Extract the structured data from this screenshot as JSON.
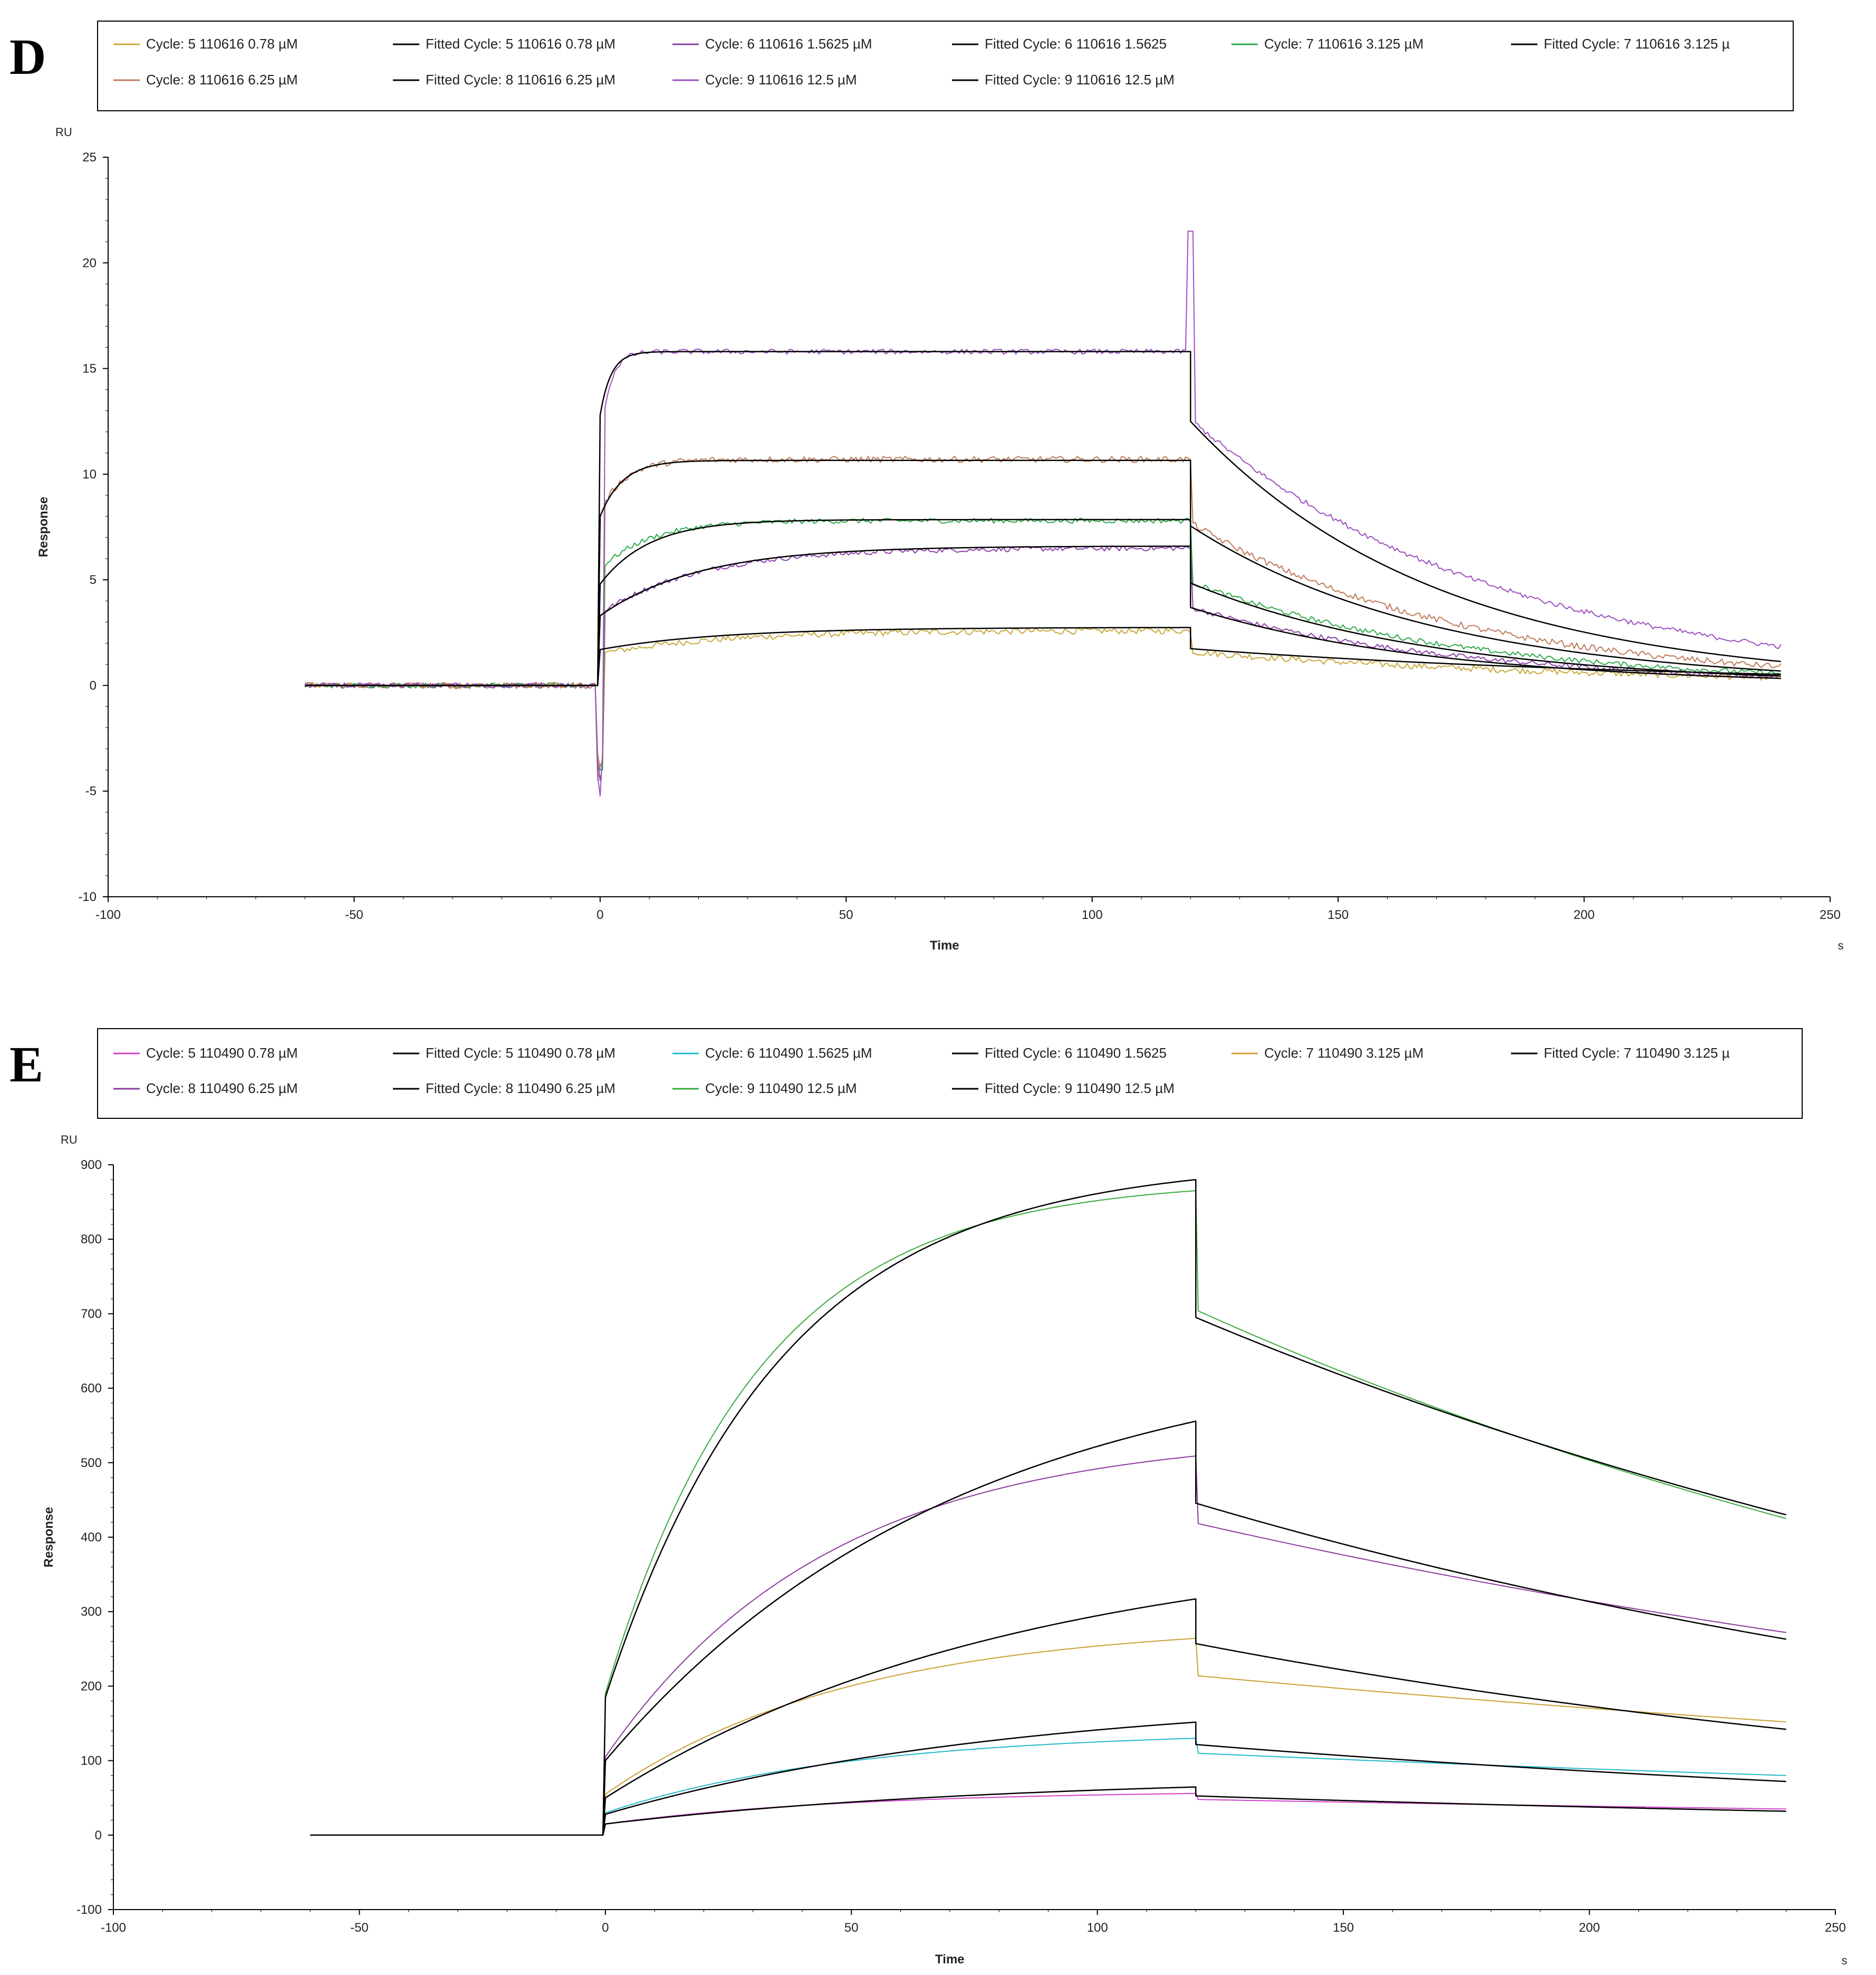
{
  "chart_data": [
    {
      "panel": "D",
      "type": "line",
      "title": "",
      "xlabel": "Time",
      "ylabel": "Response",
      "y_unit": "RU",
      "x_unit": "s",
      "xlim": [
        -100,
        250
      ],
      "ylim": [
        -10,
        25
      ],
      "xticks": [
        -100,
        -50,
        0,
        50,
        100,
        150,
        200,
        250
      ],
      "yticks": [
        -10,
        -5,
        0,
        5,
        10,
        15,
        20,
        25
      ],
      "grid": false,
      "legend_position": "top",
      "legend": [
        {
          "label": "Cycle: 5  110616  0.78 µM",
          "color": "#c8a83a"
        },
        {
          "label": "Fitted Cycle: 5  110616  0.78 µM",
          "color": "#000000"
        },
        {
          "label": "Cycle: 6  110616  1.5625 µM",
          "color": "#8a3fa8"
        },
        {
          "label": "Fitted Cycle: 6  110616  1.5625",
          "color": "#000000"
        },
        {
          "label": "Cycle: 7  110616  3.125 µM",
          "color": "#2faa4a"
        },
        {
          "label": "Fitted Cycle: 7  110616  3.125 µ",
          "color": "#000000"
        },
        {
          "label": "Cycle: 8  110616  6.25 µM",
          "color": "#c07a5a"
        },
        {
          "label": "Fitted Cycle: 8  110616  6.25 µM",
          "color": "#000000"
        },
        {
          "label": "Cycle: 9  110616  12.5 µM",
          "color": "#9a4fc0"
        },
        {
          "label": "Fitted Cycle: 9  110616  12.5 µM",
          "color": "#000000"
        }
      ],
      "model": {
        "t_start": -60,
        "t_inject": 0,
        "t_end_assoc": 120,
        "t_end": 240,
        "series": [
          {
            "name": "Cycle: 5  110616  0.78 µM",
            "color": "#c8a83a",
            "jump": 1.5,
            "plateau": 2.6,
            "k_on": 0.04,
            "drop": 1.0,
            "k_off": 0.012,
            "noise": 0.15,
            "spike": 0
          },
          {
            "name": "Cycle: 6  110616  1.5625 µM",
            "color": "#8a3fa8",
            "jump": 3.4,
            "plateau": 6.5,
            "k_on": 0.05,
            "drop": 2.8,
            "k_off": 0.018,
            "noise": 0.12,
            "spike": 0
          },
          {
            "name": "Cycle: 7  110616  3.125 µM",
            "color": "#2faa4a",
            "jump": 5.5,
            "plateau": 7.8,
            "k_on": 0.1,
            "drop": 2.9,
            "k_off": 0.018,
            "noise": 0.12,
            "spike": 0
          },
          {
            "name": "Cycle: 8  110616  6.25 µM",
            "color": "#c07a5a",
            "jump": 8.2,
            "plateau": 10.7,
            "k_on": 0.2,
            "drop": 3.0,
            "k_off": 0.018,
            "noise": 0.15,
            "spike": 0
          },
          {
            "name": "Cycle: 9  110616  12.5 µM",
            "color": "#9a4fc0",
            "jump": 11.5,
            "plateau": 15.8,
            "k_on": 0.5,
            "drop": 3.2,
            "k_off": 0.016,
            "noise": 0.12,
            "spike": 21.5
          }
        ],
        "fits": [
          {
            "name": "Fitted Cycle: 5  110616  0.78 µM",
            "jump": 1.7,
            "plateau": 2.75,
            "k_on": 0.04,
            "drop": 1.0,
            "k_off": 0.01
          },
          {
            "name": "Fitted Cycle: 6  110616  1.5625",
            "jump": 3.3,
            "plateau": 6.6,
            "k_on": 0.05,
            "drop": 2.9,
            "k_off": 0.02
          },
          {
            "name": "Fitted Cycle: 7  110616  3.125 µ",
            "jump": 4.8,
            "plateau": 7.85,
            "k_on": 0.1,
            "drop": 3.0,
            "k_off": 0.02
          },
          {
            "name": "Fitted Cycle: 8  110616  6.25 µM",
            "jump": 8.0,
            "plateau": 10.65,
            "k_on": 0.22,
            "drop": 3.1,
            "k_off": 0.02
          },
          {
            "name": "Fitted Cycle: 9  110616  12.5 µM",
            "jump": 12.8,
            "plateau": 15.8,
            "k_on": 0.45,
            "drop": 3.3,
            "k_off": 0.02
          }
        ]
      }
    },
    {
      "panel": "E",
      "type": "line",
      "title": "",
      "xlabel": "Time",
      "ylabel": "Response",
      "y_unit": "RU",
      "x_unit": "s",
      "xlim": [
        -100,
        250
      ],
      "ylim": [
        -100,
        900
      ],
      "xticks": [
        -100,
        -50,
        0,
        50,
        100,
        150,
        200,
        250
      ],
      "yticks": [
        -100,
        0,
        100,
        200,
        300,
        400,
        500,
        600,
        700,
        800,
        900
      ],
      "grid": false,
      "legend_position": "top",
      "legend": [
        {
          "label": "Cycle: 5  110490  0.78 µM",
          "color": "#d040c8"
        },
        {
          "label": "Fitted Cycle: 5  110490  0.78 µM",
          "color": "#000000"
        },
        {
          "label": "Cycle: 6  110490  1.5625 µM",
          "color": "#20b8c8"
        },
        {
          "label": "Fitted Cycle: 6  110490  1.5625",
          "color": "#000000"
        },
        {
          "label": "Cycle: 7  110490  3.125 µM",
          "color": "#c8a030"
        },
        {
          "label": "Fitted Cycle: 7  110490  3.125 µ",
          "color": "#000000"
        },
        {
          "label": "Cycle: 8  110490  6.25 µM",
          "color": "#8a3a9a"
        },
        {
          "label": "Fitted Cycle: 8  110490  6.25 µM",
          "color": "#000000"
        },
        {
          "label": "Cycle: 9  110490  12.5 µM",
          "color": "#3aaa3a"
        },
        {
          "label": "Fitted Cycle: 9  110490  12.5 µM",
          "color": "#000000"
        }
      ],
      "model": {
        "t_start": -60,
        "t_inject": 0,
        "t_end_assoc": 120,
        "t_end": 240,
        "series": [
          {
            "name": "Cycle: 5  110490  0.78 µM",
            "color": "#d040c8",
            "jump": 15,
            "plateau": 60,
            "k_on": 0.02,
            "drop": 8,
            "end": 35
          },
          {
            "name": "Cycle: 6  110490  1.5625 µM",
            "color": "#20b8c8",
            "jump": 30,
            "plateau": 140,
            "k_on": 0.02,
            "drop": 20,
            "end": 80
          },
          {
            "name": "Cycle: 7  110490  3.125 µM",
            "color": "#c8a030",
            "jump": 55,
            "plateau": 285,
            "k_on": 0.02,
            "drop": 50,
            "end": 152
          },
          {
            "name": "Cycle: 8  110490  6.25 µM",
            "color": "#8a3a9a",
            "jump": 105,
            "plateau": 540,
            "k_on": 0.022,
            "drop": 90,
            "end": 272
          },
          {
            "name": "Cycle: 9  110490  12.5 µM",
            "color": "#3aaa3a",
            "jump": 190,
            "plateau": 880,
            "k_on": 0.032,
            "drop": 160,
            "end": 425
          }
        ],
        "fits": [
          {
            "name": "Fitted Cycle: 5  110490  0.78 µM",
            "jump": 15,
            "plateau": 80,
            "k_on": 0.012,
            "drop": 12,
            "end": 32
          },
          {
            "name": "Fitted Cycle: 6  110490  1.5625",
            "jump": 28,
            "plateau": 190,
            "k_on": 0.012,
            "drop": 30,
            "end": 72
          },
          {
            "name": "Fitted Cycle: 7  110490  3.125 µ",
            "jump": 50,
            "plateau": 400,
            "k_on": 0.012,
            "drop": 60,
            "end": 142
          },
          {
            "name": "Fitted Cycle: 8  110490  6.25 µM",
            "jump": 100,
            "plateau": 660,
            "k_on": 0.014,
            "drop": 110,
            "end": 263
          },
          {
            "name": "Fitted Cycle: 9  110490  12.5 µM",
            "jump": 185,
            "plateau": 905,
            "k_on": 0.028,
            "drop": 185,
            "end": 430
          }
        ]
      }
    }
  ]
}
